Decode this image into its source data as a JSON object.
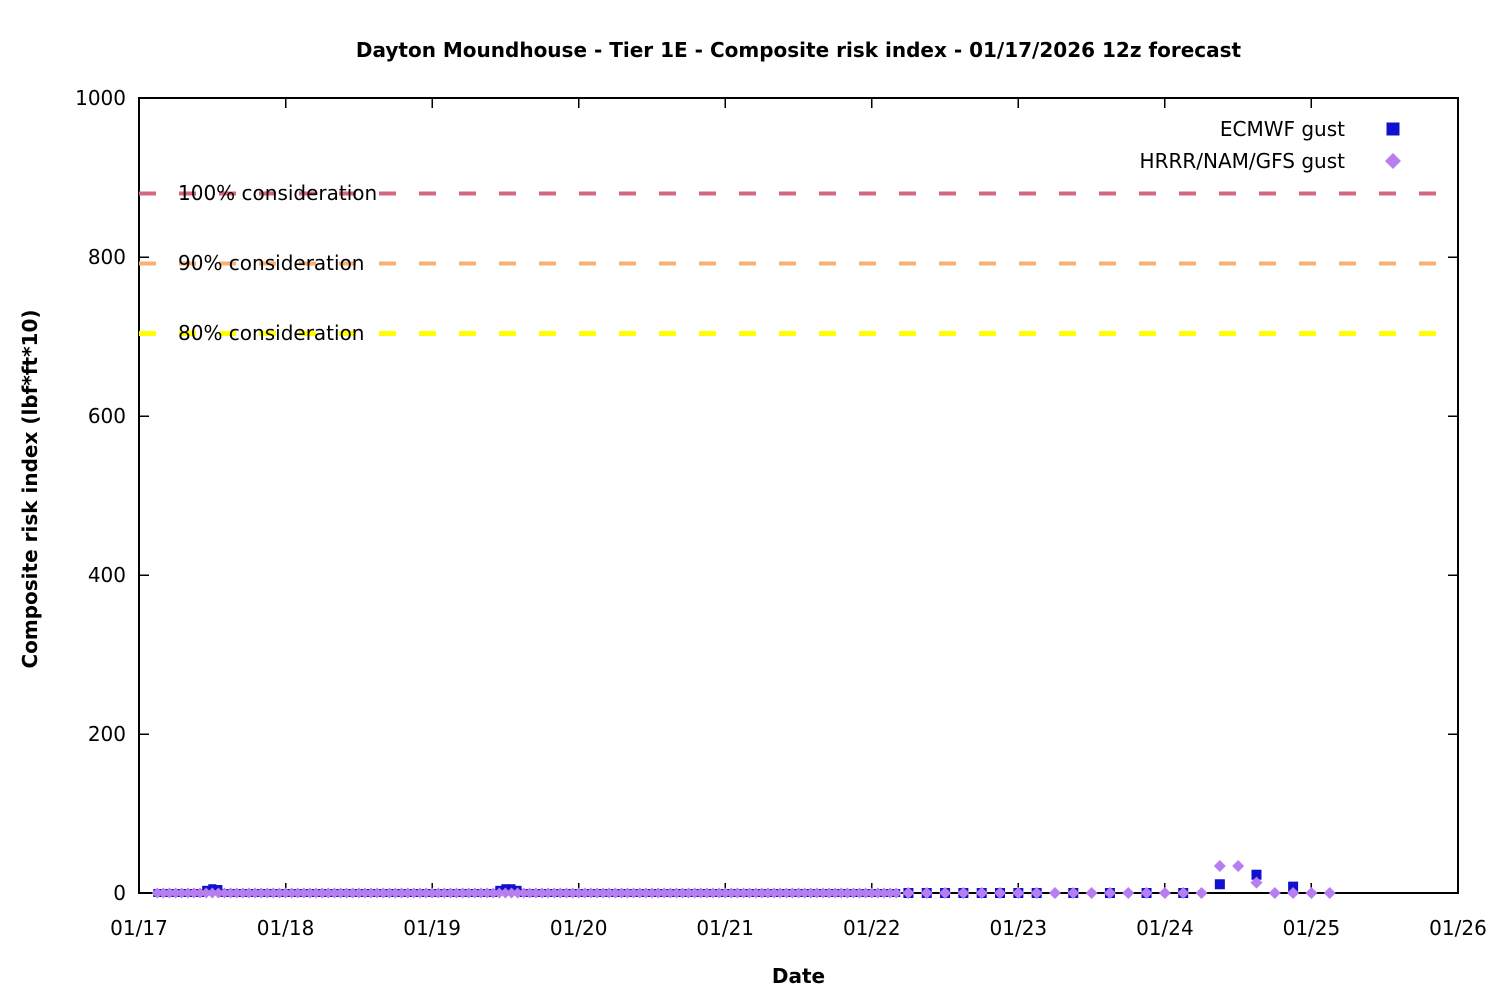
{
  "title": "Dayton Moundhouse - Tier 1E - Composite risk index - 01/17/2026 12z forecast",
  "chart_data": {
    "type": "scatter",
    "title": "Dayton Moundhouse - Tier 1E - Composite risk index - 01/17/2026 12z forecast",
    "xlabel": "Date",
    "ylabel": "Composite risk index (lbf*ft*10)",
    "x_tick_labels": [
      "01/17",
      "01/18",
      "01/19",
      "01/20",
      "01/21",
      "01/22",
      "01/23",
      "01/24",
      "01/25",
      "01/26"
    ],
    "y_ticks": [
      0,
      200,
      400,
      600,
      800,
      1000
    ],
    "y_tick_labels": [
      "0",
      "200",
      "400",
      "600",
      "800",
      "1000"
    ],
    "ylim": [
      0,
      1000
    ],
    "x_range_days": 9,
    "grid": false,
    "legend_position": "top-right",
    "reference_lines": [
      {
        "label": "100% consideration",
        "value": 880,
        "color": "#d6687e",
        "style": "dashed"
      },
      {
        "label": "90% consideration",
        "value": 792,
        "color": "#f7b075",
        "style": "dashed"
      },
      {
        "label": "80% consideration",
        "value": 704,
        "color": "#ffff00",
        "style": "dashed"
      }
    ],
    "series": [
      {
        "name": "ECMWF gust",
        "marker": "square",
        "color": "#1010cd",
        "dense_band": {
          "start_day": 0.125,
          "end_day": 5.167,
          "interval_days": 0.0416667,
          "value": 0,
          "bumps": [
            [
              0.458,
              4
            ],
            [
              0.5,
              6
            ],
            [
              0.542,
              5
            ],
            [
              2.458,
              4
            ],
            [
              2.5,
              6
            ],
            [
              2.542,
              6
            ],
            [
              2.583,
              4
            ]
          ]
        },
        "points": [
          [
            5.25,
            0
          ],
          [
            5.375,
            0
          ],
          [
            5.5,
            0
          ],
          [
            5.625,
            0
          ],
          [
            5.75,
            0
          ],
          [
            5.875,
            0
          ],
          [
            6.0,
            0
          ],
          [
            6.125,
            0
          ],
          [
            6.375,
            0
          ],
          [
            6.625,
            0
          ],
          [
            6.875,
            0
          ],
          [
            7.125,
            0
          ],
          [
            7.375,
            11
          ],
          [
            7.625,
            23
          ],
          [
            7.875,
            8
          ]
        ]
      },
      {
        "name": "HRRR/NAM/GFS gust",
        "marker": "diamond",
        "color": "#b77ef0",
        "dense_band": {
          "start_day": 0.125,
          "end_day": 5.167,
          "interval_days": 0.0416667,
          "value": 0,
          "bumps": []
        },
        "points": [
          [
            5.25,
            0
          ],
          [
            5.375,
            0
          ],
          [
            5.5,
            0
          ],
          [
            5.625,
            0
          ],
          [
            5.75,
            0
          ],
          [
            5.875,
            0
          ],
          [
            6.0,
            0
          ],
          [
            6.125,
            0
          ],
          [
            6.25,
            0
          ],
          [
            6.375,
            0
          ],
          [
            6.5,
            0
          ],
          [
            6.625,
            0
          ],
          [
            6.75,
            0
          ],
          [
            6.875,
            0
          ],
          [
            7.0,
            0
          ],
          [
            7.125,
            0
          ],
          [
            7.25,
            0
          ],
          [
            7.375,
            34
          ],
          [
            7.5,
            34
          ],
          [
            7.625,
            13
          ],
          [
            7.75,
            0
          ],
          [
            7.875,
            0
          ],
          [
            8.0,
            0
          ],
          [
            8.125,
            0
          ]
        ]
      }
    ]
  }
}
